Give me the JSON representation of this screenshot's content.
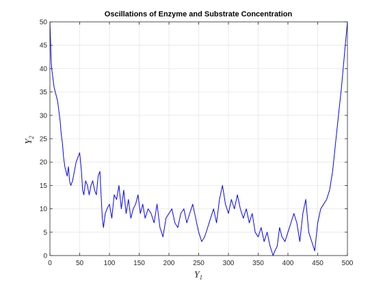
{
  "chart_data": {
    "type": "line",
    "title": "Oscillations of Enzyme and Substrate Concentration",
    "xlabel": {
      "base": "Y",
      "sub": "1"
    },
    "ylabel": {
      "base": "Y",
      "sub": "2"
    },
    "xlim": [
      0,
      500
    ],
    "ylim": [
      0,
      50
    ],
    "xticks": [
      0,
      50,
      100,
      150,
      200,
      250,
      300,
      350,
      400,
      450,
      500
    ],
    "yticks": [
      0,
      5,
      10,
      15,
      20,
      25,
      30,
      35,
      40,
      45,
      50
    ],
    "grid": true,
    "colors": {
      "line": "#0000ff",
      "grid": "#e6e6e6",
      "axes": "#262626"
    },
    "series": [
      {
        "color": "#0000ff",
        "x": [
          0,
          1,
          2,
          3,
          5,
          7,
          9,
          11,
          13,
          15,
          17,
          19,
          21,
          23,
          25,
          27,
          29,
          31,
          33,
          35,
          38,
          41,
          44,
          47,
          50,
          53,
          55,
          57,
          60,
          63,
          66,
          69,
          72,
          75,
          78,
          81,
          84,
          86,
          88,
          90,
          93,
          96,
          100,
          104,
          108,
          112,
          116,
          120,
          124,
          128,
          132,
          136,
          140,
          144,
          148,
          152,
          156,
          160,
          165,
          170,
          175,
          180,
          185,
          190,
          195,
          200,
          205,
          210,
          215,
          220,
          225,
          230,
          235,
          240,
          245,
          250,
          255,
          260,
          265,
          270,
          275,
          280,
          285,
          290,
          295,
          300,
          305,
          310,
          315,
          320,
          325,
          330,
          335,
          340,
          345,
          350,
          355,
          360,
          365,
          370,
          375,
          378,
          382,
          386,
          390,
          395,
          400,
          405,
          410,
          415,
          420,
          425,
          430,
          435,
          440,
          445,
          450,
          455,
          460,
          465,
          470,
          475,
          480,
          485,
          490,
          495,
          500
        ],
        "y": [
          50,
          46,
          42,
          40,
          38,
          36,
          35,
          34,
          33,
          31,
          29,
          26,
          24,
          21,
          19,
          18,
          17,
          19,
          16,
          15,
          16,
          18,
          20,
          21,
          22,
          18,
          14,
          13,
          16,
          15,
          13,
          15,
          16,
          14,
          13,
          17,
          18,
          13,
          8,
          6,
          9,
          10,
          11,
          8,
          13,
          12,
          15,
          10,
          14,
          9,
          12,
          8,
          10,
          11,
          13,
          9,
          11,
          8,
          10,
          9,
          7,
          11,
          6,
          4,
          8,
          9,
          10,
          7,
          6,
          9,
          10,
          7,
          9,
          11,
          8,
          5,
          3,
          4,
          6,
          8,
          10,
          7,
          12,
          15,
          11,
          9,
          12,
          10,
          13,
          10,
          8,
          10,
          7,
          9,
          5,
          4,
          6,
          3,
          5,
          2,
          0,
          1,
          2,
          6,
          4,
          3,
          5,
          7,
          9,
          7,
          3,
          9,
          12,
          5,
          3,
          1,
          7,
          10,
          11,
          12,
          14,
          18,
          24,
          30,
          36,
          43,
          50
        ]
      }
    ]
  }
}
